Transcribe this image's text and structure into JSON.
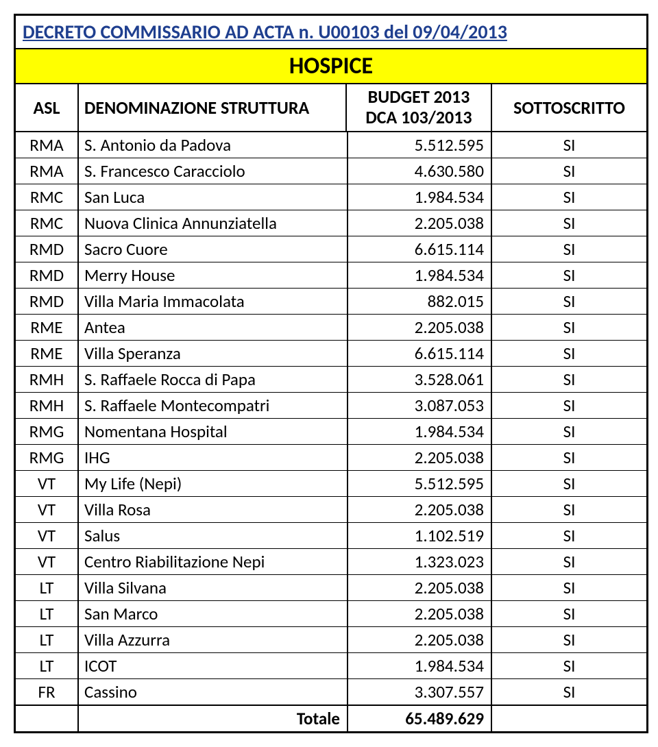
{
  "title": "DECRETO COMMISSARIO AD ACTA n. U00103 del 09/04/2013",
  "banner": "HOSPICE",
  "headers": {
    "asl": "ASL",
    "denom": "DENOMINAZIONE STRUTTURA",
    "budget_line1": "BUDGET 2013",
    "budget_line2": "DCA 103/2013",
    "sotto": "SOTTOSCRITTO"
  },
  "rows": [
    {
      "asl": "RMA",
      "denom": "S. Antonio da Padova",
      "budget": "5.512.595",
      "sotto": "SI"
    },
    {
      "asl": "RMA",
      "denom": "S. Francesco Caracciolo",
      "budget": "4.630.580",
      "sotto": "SI"
    },
    {
      "asl": "RMC",
      "denom": "San Luca",
      "budget": "1.984.534",
      "sotto": "SI"
    },
    {
      "asl": "RMC",
      "denom": "Nuova Clinica Annunziatella",
      "budget": "2.205.038",
      "sotto": "SI"
    },
    {
      "asl": "RMD",
      "denom": "Sacro Cuore",
      "budget": "6.615.114",
      "sotto": "SI"
    },
    {
      "asl": "RMD",
      "denom": "Merry House",
      "budget": "1.984.534",
      "sotto": "SI"
    },
    {
      "asl": "RMD",
      "denom": "Villa Maria Immacolata",
      "budget": "882.015",
      "sotto": "SI"
    },
    {
      "asl": "RME",
      "denom": "Antea",
      "budget": "2.205.038",
      "sotto": "SI"
    },
    {
      "asl": "RME",
      "denom": "Villa Speranza",
      "budget": "6.615.114",
      "sotto": "SI"
    },
    {
      "asl": "RMH",
      "denom": "S. Raffaele Rocca di Papa",
      "budget": "3.528.061",
      "sotto": "SI"
    },
    {
      "asl": "RMH",
      "denom": "S. Raffaele Montecompatri",
      "budget": "3.087.053",
      "sotto": "SI"
    },
    {
      "asl": "RMG",
      "denom": "Nomentana Hospital",
      "budget": "1.984.534",
      "sotto": "SI"
    },
    {
      "asl": "RMG",
      "denom": "IHG",
      "budget": "2.205.038",
      "sotto": "SI"
    },
    {
      "asl": "VT",
      "denom": "My Life (Nepi)",
      "budget": "5.512.595",
      "sotto": "SI"
    },
    {
      "asl": "VT",
      "denom": "Villa Rosa",
      "budget": "2.205.038",
      "sotto": "SI"
    },
    {
      "asl": "VT",
      "denom": "Salus",
      "budget": "1.102.519",
      "sotto": "SI"
    },
    {
      "asl": "VT",
      "denom": "Centro Riabilitazione Nepi",
      "budget": "1.323.023",
      "sotto": "SI"
    },
    {
      "asl": "LT",
      "denom": "Villa Silvana",
      "budget": "2.205.038",
      "sotto": "SI"
    },
    {
      "asl": "LT",
      "denom": "San Marco",
      "budget": "2.205.038",
      "sotto": "SI"
    },
    {
      "asl": "LT",
      "denom": "Villa Azzurra",
      "budget": "2.205.038",
      "sotto": "SI"
    },
    {
      "asl": "LT",
      "denom": "ICOT",
      "budget": "1.984.534",
      "sotto": "SI"
    },
    {
      "asl": "FR",
      "denom": "Cassino",
      "budget": "3.307.557",
      "sotto": "SI"
    }
  ],
  "total_label": "Totale",
  "total_value": "65.489.629",
  "colors": {
    "title": "#1f3f8f",
    "banner_bg": "#ffff00",
    "border": "#000000",
    "bg": "#ffffff"
  },
  "font_sizes": {
    "title": 28,
    "banner": 34,
    "header": 26,
    "body": 25
  }
}
